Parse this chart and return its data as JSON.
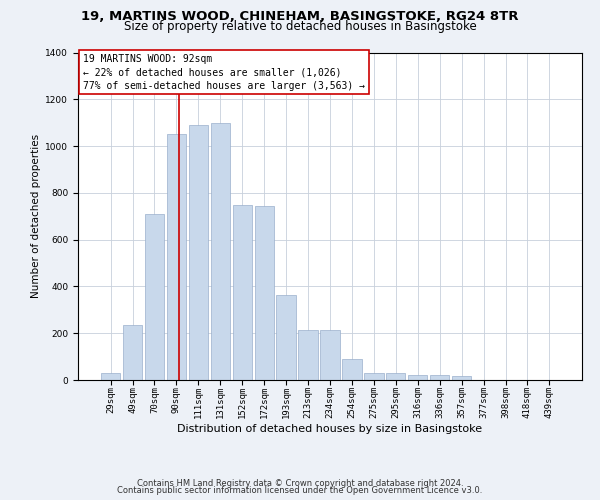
{
  "title": "19, MARTINS WOOD, CHINEHAM, BASINGSTOKE, RG24 8TR",
  "subtitle": "Size of property relative to detached houses in Basingstoke",
  "xlabel": "Distribution of detached houses by size in Basingstoke",
  "ylabel": "Number of detached properties",
  "bar_color": "#c8d8eb",
  "bar_edge_color": "#9ab0cc",
  "vline_color": "#cc0000",
  "categories": [
    "29sqm",
    "49sqm",
    "70sqm",
    "90sqm",
    "111sqm",
    "131sqm",
    "152sqm",
    "172sqm",
    "193sqm",
    "213sqm",
    "234sqm",
    "254sqm",
    "275sqm",
    "295sqm",
    "316sqm",
    "336sqm",
    "357sqm",
    "377sqm",
    "398sqm",
    "418sqm",
    "439sqm"
  ],
  "values": [
    30,
    235,
    710,
    1050,
    1090,
    1100,
    750,
    745,
    365,
    215,
    215,
    90,
    30,
    30,
    20,
    20,
    15,
    0,
    0,
    0,
    0
  ],
  "annotation_line1": "19 MARTINS WOOD: 92sqm",
  "annotation_line2": "← 22% of detached houses are smaller (1,026)",
  "annotation_line3": "77% of semi-detached houses are larger (3,563) →",
  "vline_position": 3.1,
  "ylim": [
    0,
    1400
  ],
  "yticks": [
    0,
    200,
    400,
    600,
    800,
    1000,
    1200,
    1400
  ],
  "footer1": "Contains HM Land Registry data © Crown copyright and database right 2024.",
  "footer2": "Contains public sector information licensed under the Open Government Licence v3.0.",
  "background_color": "#edf1f7",
  "plot_background": "#ffffff",
  "grid_color": "#c8d0dc",
  "title_fontsize": 9.5,
  "subtitle_fontsize": 8.5,
  "xlabel_fontsize": 8,
  "ylabel_fontsize": 7.5,
  "tick_fontsize": 6.5,
  "annot_fontsize": 7,
  "footer_fontsize": 6
}
